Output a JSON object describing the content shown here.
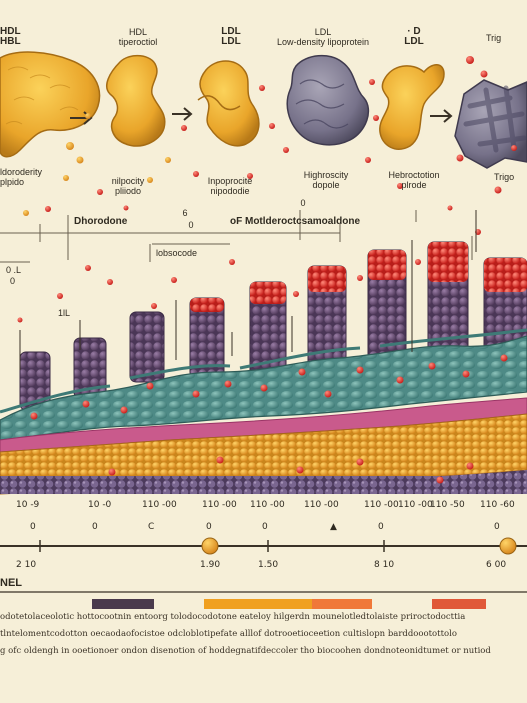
{
  "top_labels": [
    {
      "id": "hdl",
      "text": "HDL\nHBL"
    },
    {
      "id": "hdl2",
      "text": "HDL\ntiperoctiol"
    },
    {
      "id": "ldl",
      "text": "LDL\nLDL"
    },
    {
      "id": "ldl2",
      "text": "LDL\nLow-density lipoprotein"
    },
    {
      "id": "dl",
      "text": "· D\nLDL"
    },
    {
      "id": "trig",
      "text": "Trig"
    }
  ],
  "mid_labels": [
    {
      "id": "m1",
      "text": "ldoroderity\nplpido"
    },
    {
      "id": "m2",
      "text": "nilpocity\npliiodo"
    },
    {
      "id": "m3",
      "text": "Inpoprocite\nnipododie"
    },
    {
      "id": "m4",
      "text": "Highroscity\ndopole"
    },
    {
      "id": "m5",
      "text": "Hebroctotion\nplrode"
    },
    {
      "id": "m6",
      "text": "Trigo"
    }
  ],
  "section_labels": {
    "left": "Dhorodone",
    "right": "oF Motlderoctcsamoaldone",
    "sub": "lobsocode",
    "small_left": "0 .L",
    "small_zero": "0",
    "small_ll": "1lL",
    "small_0b": "0",
    "small_6": "6",
    "small_0c": "0"
  },
  "axis_top": [
    "10 -9",
    "10 -0",
    "110 -00",
    "110 -00",
    "110 -00",
    "110 -00",
    "110 -00",
    "110 -00",
    "110 -50",
    "110 -60"
  ],
  "axis_mid": [
    "0",
    "0",
    "C",
    "0",
    "0",
    "▲",
    "0",
    "0"
  ],
  "axis_bottom": [
    "2 10",
    "1.90",
    "1.50",
    "8 10",
    "6 00"
  ],
  "legend_title": "NEL",
  "swatches": [
    "#4a3a4c",
    "#f0a020",
    "#f07838",
    "#e05838"
  ],
  "body_text": [
    "odotetolaceolotic hottocootnin entoorg tolodocodotone eateloy hilgerdn mounelotledtolaiste priroctodocttia",
    "tlntelomentcodotton oecaodaofocistoe odcloblotipefate alllof dotrooetioceetion cultislopn barddoootottolo",
    "g ofc oldengh in ooetionoer ondon disenotion of hoddegnatifdeccoler tho biocoohen dondnoteonidtumet or nutiod"
  ],
  "colors": {
    "background": "#f6efd8",
    "lipid_yellow": "#e8a72a",
    "purple": "#6a5070",
    "grey_purple": "#7a7488",
    "teal": "#5c9a94",
    "red": "#d83028",
    "pink": "#c8508a",
    "orange": "#e49a2a"
  }
}
